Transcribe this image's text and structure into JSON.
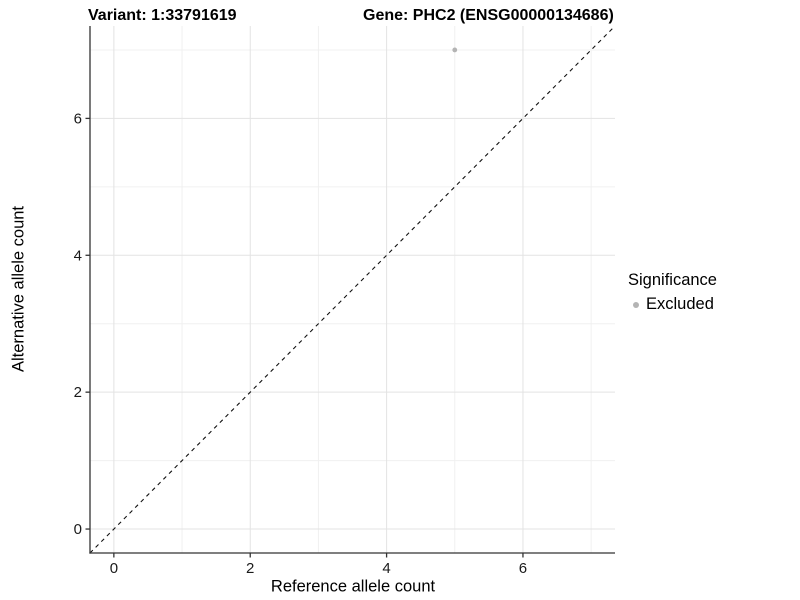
{
  "colors": {
    "background": "#ffffff",
    "grid_major": "#e3e3e3",
    "grid_minor": "#f0f0f0",
    "axis_line": "#333333",
    "tick_mark": "#333333",
    "tick_label": "#1a1a1a",
    "text": "#000000",
    "reference_line": "#111111",
    "point_excluded": "#b4b4b4"
  },
  "chart_data": {
    "type": "scatter",
    "title_left": "Variant: 1:33791619",
    "title_right": "Gene: PHC2 (ENSG00000134686)",
    "xlabel": "Reference allele count",
    "ylabel": "Alternative allele count",
    "xlim": [
      -0.35,
      7.35
    ],
    "ylim": [
      -0.35,
      7.35
    ],
    "x_major_ticks": [
      0,
      2,
      4,
      6
    ],
    "y_major_ticks": [
      0,
      2,
      4,
      6
    ],
    "x_minor_gridlines": [
      1,
      3,
      5,
      7
    ],
    "y_minor_gridlines": [
      1,
      3,
      5,
      7
    ],
    "grid": true,
    "points": [
      {
        "x": 5,
        "y": 7,
        "series": "Excluded"
      }
    ],
    "series": [
      {
        "name": "Excluded",
        "color": "#b4b4b4"
      }
    ],
    "reference_line": {
      "slope": 1,
      "intercept": 0,
      "style": "dashed"
    },
    "legend": {
      "title": "Significance",
      "position": "right",
      "entries": [
        {
          "label": "Excluded",
          "color": "#b4b4b4"
        }
      ]
    }
  }
}
